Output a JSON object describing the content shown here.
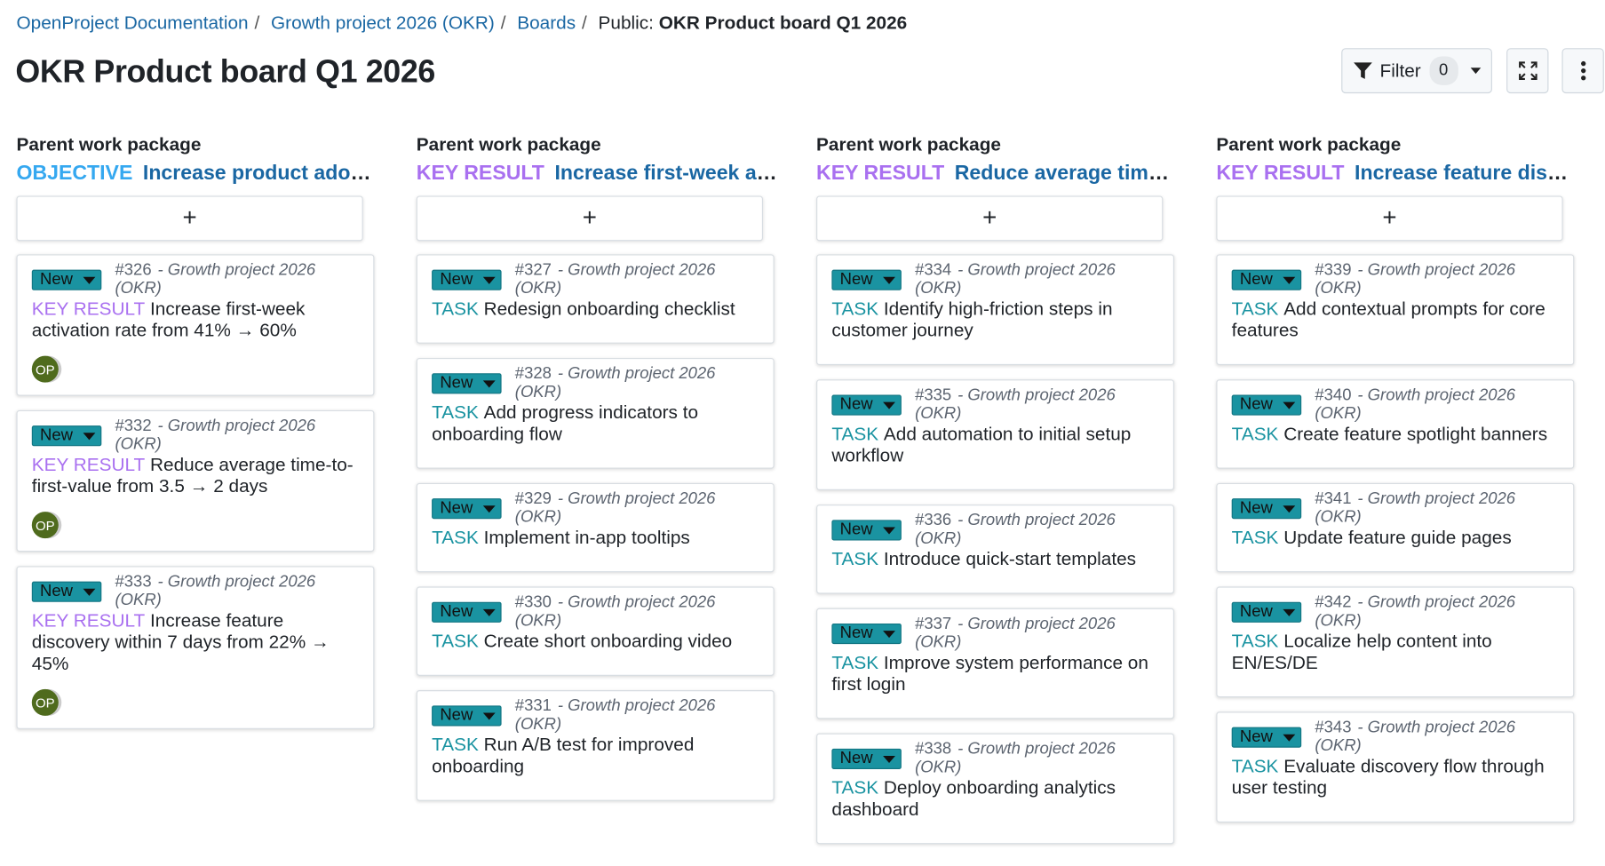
{
  "breadcrumb": {
    "items": [
      "OpenProject Documentation",
      "Growth project 2026 (OKR)",
      "Boards"
    ],
    "current_prefix": "Public:",
    "current": "OKR Product board Q1 2026"
  },
  "title": "OKR Product board Q1 2026",
  "toolbar": {
    "filter_label": "Filter",
    "filter_count": "0"
  },
  "colors": {
    "objective": "#35a8f0",
    "key_result": "#a970f0",
    "task": "#1a93a1",
    "status_new": "#1a93a1",
    "link": "#1a67a3",
    "avatar": "#4f6b1d"
  },
  "columns": [
    {
      "header": "Parent work package",
      "type": "OBJECTIVE",
      "name": "Increase product adoption",
      "cards": [
        {
          "status": "New",
          "id": "#326",
          "project": "- Growth project 2026 (OKR)",
          "type": "KEY RESULT",
          "title": "Increase first-week activation rate from 41% → 60%",
          "avatar": "OP"
        },
        {
          "status": "New",
          "id": "#332",
          "project": "- Growth project 2026 (OKR)",
          "type": "KEY RESULT",
          "title": "Reduce average time-to-first-value from 3.5 → 2 days",
          "avatar": "OP"
        },
        {
          "status": "New",
          "id": "#333",
          "project": "- Growth project 2026 (OKR)",
          "type": "KEY RESULT",
          "title": "Increase feature discovery within 7 days from 22% → 45%",
          "avatar": "OP"
        }
      ]
    },
    {
      "header": "Parent work package",
      "type": "KEY RESULT",
      "name": "Increase first-week activation rate",
      "cards": [
        {
          "status": "New",
          "id": "#327",
          "project": "- Growth project 2026 (OKR)",
          "type": "TASK",
          "title": "Redesign onboarding checklist"
        },
        {
          "status": "New",
          "id": "#328",
          "project": "- Growth project 2026 (OKR)",
          "type": "TASK",
          "title": "Add progress indicators to onboarding flow"
        },
        {
          "status": "New",
          "id": "#329",
          "project": "- Growth project 2026 (OKR)",
          "type": "TASK",
          "title": "Implement in-app tooltips"
        },
        {
          "status": "New",
          "id": "#330",
          "project": "- Growth project 2026 (OKR)",
          "type": "TASK",
          "title": "Create short onboarding video"
        },
        {
          "status": "New",
          "id": "#331",
          "project": "- Growth project 2026 (OKR)",
          "type": "TASK",
          "title": "Run A/B test for improved onboarding"
        }
      ]
    },
    {
      "header": "Parent work package",
      "type": "KEY RESULT",
      "name": "Reduce average time-to-first-value",
      "cards": [
        {
          "status": "New",
          "id": "#334",
          "project": "- Growth project 2026 (OKR)",
          "type": "TASK",
          "title": "Identify high-friction steps in customer journey"
        },
        {
          "status": "New",
          "id": "#335",
          "project": "- Growth project 2026 (OKR)",
          "type": "TASK",
          "title": "Add automation to initial setup workflow"
        },
        {
          "status": "New",
          "id": "#336",
          "project": "- Growth project 2026 (OKR)",
          "type": "TASK",
          "title": "Introduce quick-start templates"
        },
        {
          "status": "New",
          "id": "#337",
          "project": "- Growth project 2026 (OKR)",
          "type": "TASK",
          "title": "Improve system performance on first login"
        },
        {
          "status": "New",
          "id": "#338",
          "project": "- Growth project 2026 (OKR)",
          "type": "TASK",
          "title": "Deploy onboarding analytics dashboard"
        }
      ]
    },
    {
      "header": "Parent work package",
      "type": "KEY RESULT",
      "name": "Increase feature discovery",
      "cards": [
        {
          "status": "New",
          "id": "#339",
          "project": "- Growth project 2026 (OKR)",
          "type": "TASK",
          "title": "Add contextual prompts for core features"
        },
        {
          "status": "New",
          "id": "#340",
          "project": "- Growth project 2026 (OKR)",
          "type": "TASK",
          "title": "Create feature spotlight banners"
        },
        {
          "status": "New",
          "id": "#341",
          "project": "- Growth project 2026 (OKR)",
          "type": "TASK",
          "title": "Update feature guide pages"
        },
        {
          "status": "New",
          "id": "#342",
          "project": "- Growth project 2026 (OKR)",
          "type": "TASK",
          "title": "Localize help content into EN/ES/DE"
        },
        {
          "status": "New",
          "id": "#343",
          "project": "- Growth project 2026 (OKR)",
          "type": "TASK",
          "title": "Evaluate discovery flow through user testing"
        }
      ]
    }
  ]
}
